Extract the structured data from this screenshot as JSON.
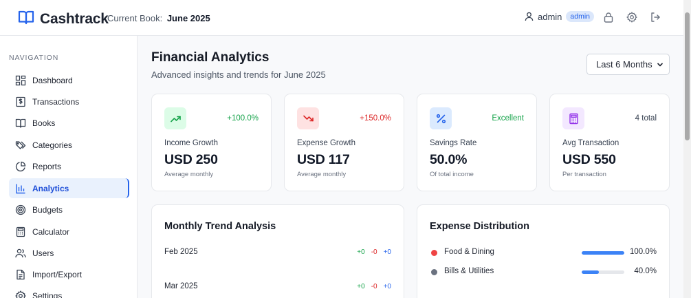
{
  "app": {
    "name": "Cashtrack",
    "current_book_label": "Current Book:",
    "current_book": "June 2025"
  },
  "user": {
    "name": "admin",
    "role": "admin"
  },
  "sidebar": {
    "heading": "NAVIGATION",
    "items": [
      {
        "label": "Dashboard",
        "icon": "dashboard-icon"
      },
      {
        "label": "Transactions",
        "icon": "dollar-receipt-icon"
      },
      {
        "label": "Books",
        "icon": "book-open-icon"
      },
      {
        "label": "Categories",
        "icon": "tags-icon"
      },
      {
        "label": "Reports",
        "icon": "pie-chart-icon"
      },
      {
        "label": "Analytics",
        "icon": "bar-chart-icon",
        "active": true
      },
      {
        "label": "Budgets",
        "icon": "target-icon"
      },
      {
        "label": "Calculator",
        "icon": "calculator-icon"
      },
      {
        "label": "Users",
        "icon": "users-icon"
      },
      {
        "label": "Import/Export",
        "icon": "file-icon"
      },
      {
        "label": "Settings",
        "icon": "gear-icon"
      }
    ]
  },
  "main": {
    "title": "Financial Analytics",
    "subtitle": "Advanced insights and trends for June 2025",
    "period": {
      "selected": "Last 6 Months"
    }
  },
  "stats": [
    {
      "label": "Income Growth",
      "value": "USD 250",
      "sub": "Average monthly",
      "badge": "+100.0%",
      "badge_color": "#16a34a",
      "icon": "trending-up-icon",
      "icon_bg": "#dcfce7",
      "icon_color": "#16a34a"
    },
    {
      "label": "Expense Growth",
      "value": "USD 117",
      "sub": "Average monthly",
      "badge": "+150.0%",
      "badge_color": "#dc2626",
      "icon": "trending-down-icon",
      "icon_bg": "#fee2e2",
      "icon_color": "#dc2626"
    },
    {
      "label": "Savings Rate",
      "value": "50.0%",
      "sub": "Of total income",
      "badge": "Excellent",
      "badge_color": "#16a34a",
      "icon": "percent-icon",
      "icon_bg": "#dbeafe",
      "icon_color": "#2563eb"
    },
    {
      "label": "Avg Transaction",
      "value": "USD 550",
      "sub": "Per transaction",
      "badge": "4 total",
      "badge_color": "#374151",
      "icon": "calculator-icon",
      "icon_bg": "#f3e8ff",
      "icon_color": "#9333ea"
    }
  ],
  "trend": {
    "title": "Monthly Trend Analysis",
    "rows": [
      {
        "month": "Feb 2025",
        "income": "+0",
        "expense": "-0",
        "net": "+0"
      },
      {
        "month": "Mar 2025",
        "income": "+0",
        "expense": "-0",
        "net": "+0"
      }
    ]
  },
  "distribution": {
    "title": "Expense Distribution",
    "rows": [
      {
        "label": "Food & Dining",
        "percent_text": "100.0%",
        "percent": 100,
        "dot_color": "#ef4444"
      },
      {
        "label": "Bills & Utilities",
        "percent_text": "40.0%",
        "percent": 40,
        "dot_color": "#6b7280"
      }
    ]
  },
  "colors": {
    "accent": "#2563eb",
    "income": "#16a34a",
    "expense": "#dc2626",
    "net": "#2563eb",
    "bar": "#3b82f6"
  }
}
